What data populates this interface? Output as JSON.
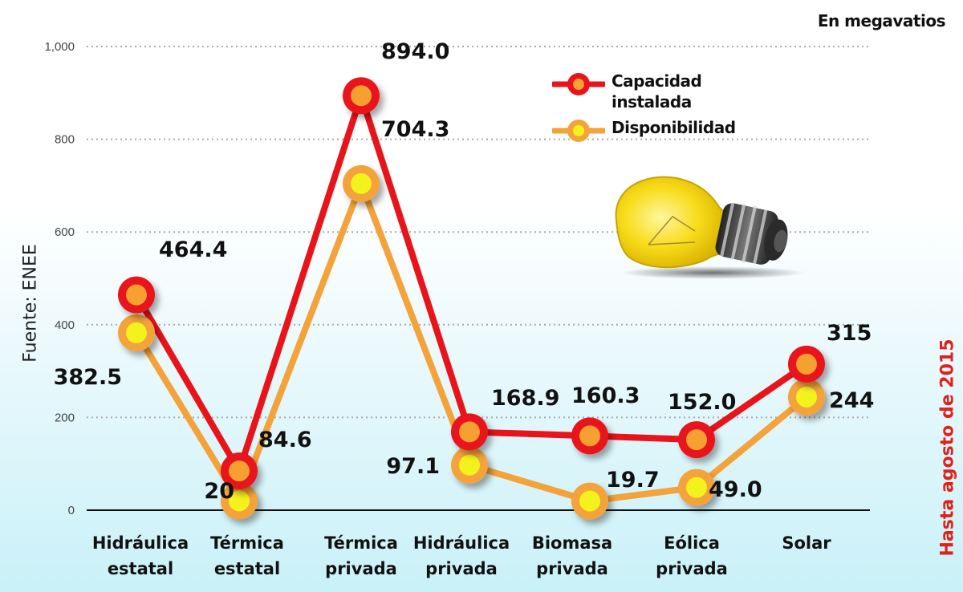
{
  "header": {
    "units": "En megavatios",
    "source": "Fuente: ENEE",
    "date_note": "Hasta agosto de 2015"
  },
  "legend": [
    {
      "label_line1": "Capacidad",
      "label_line2": "instalada",
      "color": "#e8141a",
      "fill": "#f7a033"
    },
    {
      "label_line1": "Disponibilidad",
      "label_line2": "",
      "color": "#f4a23a",
      "fill": "#f4f21c"
    }
  ],
  "colors": {
    "capacity_line": "#e8141a",
    "capacity_fill": "#f7a033",
    "availability_line": "#f4a23a",
    "availability_fill": "#f4f21c",
    "date_note": "#e0211b",
    "background_top": "#ffffff",
    "background_bottom": "#c9f1f8"
  },
  "decoration": {
    "icon": "light-bulb-icon"
  },
  "chart_data": {
    "type": "line",
    "title": "",
    "subtitle": "En megavatios",
    "xlabel": "",
    "ylabel": "",
    "ylim": [
      0,
      1000
    ],
    "yticks": [
      "0",
      "200",
      "400",
      "600",
      "800",
      "1,000"
    ],
    "grid": true,
    "legend_position": "top-right",
    "categories": [
      "Hidráulica estatal",
      "Térmica estatal",
      "Térmica privada",
      "Hidráulica privada",
      "Biomasa privada",
      "Eólica privada",
      "Solar"
    ],
    "category_lines": [
      [
        "Hidráulica",
        "estatal"
      ],
      [
        "Térmica",
        "estatal"
      ],
      [
        "Térmica",
        "privada"
      ],
      [
        "Hidráulica",
        "privada"
      ],
      [
        "Biomasa",
        "privada"
      ],
      [
        "Eólica",
        "privada"
      ],
      [
        "Solar",
        ""
      ]
    ],
    "series": [
      {
        "name": "Capacidad instalada",
        "values": [
          464.4,
          84.6,
          894.0,
          168.9,
          160.3,
          152.0,
          315
        ],
        "labels": [
          "464.4",
          "84.6",
          "894.0",
          "168.9",
          "160.3",
          "152.0",
          "315"
        ]
      },
      {
        "name": "Disponibilidad",
        "values": [
          382.5,
          20,
          704.3,
          97.1,
          19.7,
          49.0,
          244
        ],
        "labels": [
          "382.5",
          "20",
          "704.3",
          "97.1",
          "19.7",
          "49.0",
          "244"
        ]
      }
    ],
    "annotations": [
      "Fuente: ENEE",
      "Hasta agosto de 2015"
    ]
  }
}
